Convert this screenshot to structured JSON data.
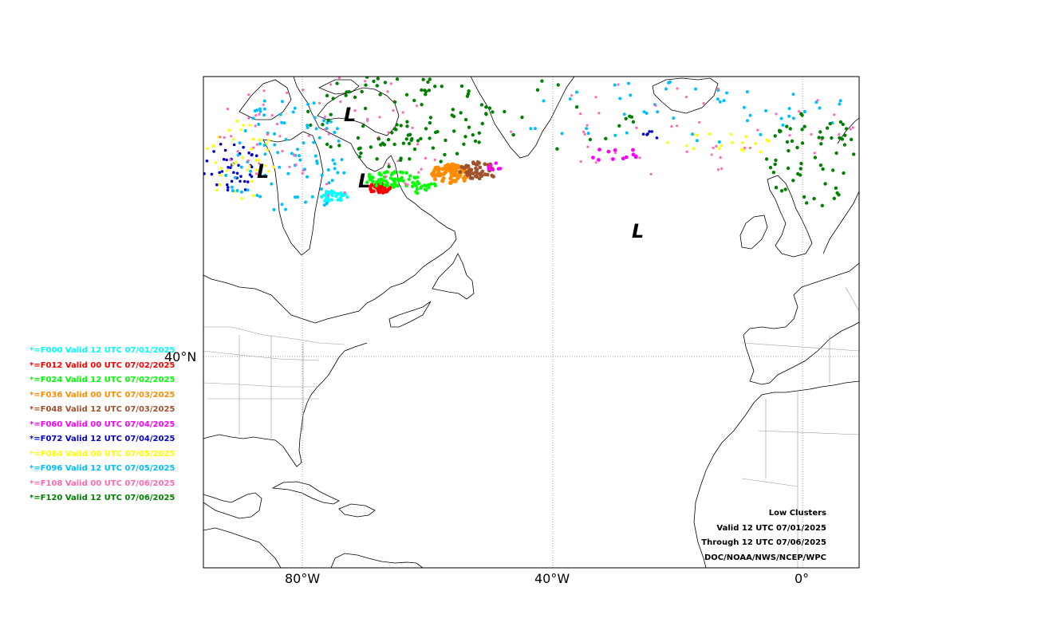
{
  "map": {
    "projection": "North Atlantic",
    "lon_labels": [
      "80°W",
      "40°W",
      "0°"
    ],
    "lat_labels": [
      "40°N"
    ],
    "gridlines": "dotted",
    "land_color": "#ffffff",
    "coast_color": "#000000",
    "border_color": "#999999"
  },
  "legend": {
    "items": [
      {
        "text": "*=F000 Valid 12 UTC 07/01/2025",
        "color": "#00ffff"
      },
      {
        "text": "*=F012 Valid 00 UTC 07/02/2025",
        "color": "#ff0000"
      },
      {
        "text": "*=F024 Valid 12 UTC 07/02/2025",
        "color": "#00ff00"
      },
      {
        "text": "*=F036 Valid 00 UTC 07/03/2025",
        "color": "#ff8c00"
      },
      {
        "text": "*=F048 Valid 12 UTC 07/03/2025",
        "color": "#a0522d"
      },
      {
        "text": "*=F060 Valid 00 UTC 07/04/2025",
        "color": "#ff00ff"
      },
      {
        "text": "*=F072 Valid 12 UTC 07/04/2025",
        "color": "#0000cd"
      },
      {
        "text": "*=F084 Valid 00 UTC 07/05/2025",
        "color": "#ffff00"
      },
      {
        "text": "*=F096 Valid 12 UTC 07/05/2025",
        "color": "#00bfff"
      },
      {
        "text": "*=F108 Valid 00 UTC 07/06/2025",
        "color": "#ff69b4"
      },
      {
        "text": "*=F120 Valid 12 UTC 07/06/2025",
        "color": "#008000"
      }
    ]
  },
  "info": {
    "line1": "Low Clusters",
    "line2": "Valid 12 UTC 07/01/2025",
    "line3": "Through 12 UTC 07/06/2025",
    "line4": "DOC/NOAA/NWS/NCEP/WPC"
  },
  "low_marker": "L"
}
